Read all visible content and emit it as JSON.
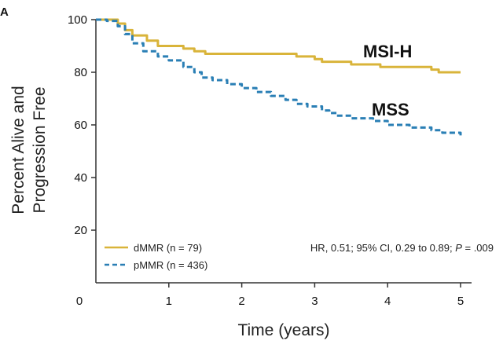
{
  "chart_data": {
    "type": "line",
    "step": true,
    "panel_label": "A",
    "xlabel": "Time (years)",
    "ylabel_lines": [
      "Percent Alive and",
      "Progression Free"
    ],
    "xlim": [
      0,
      5
    ],
    "ylim": [
      20,
      100
    ],
    "x_ticks": [
      0,
      1,
      2,
      3,
      4,
      5
    ],
    "y_ticks": [
      20,
      40,
      60,
      80,
      100
    ],
    "grid": false,
    "legend_position": "bottom-left",
    "annotations": {
      "msih": "MSI-H",
      "mss": "MSS",
      "stat_prefix": "HR, 0.51; 95% CI, 0.29 to 0.89; ",
      "stat_p_label": "P",
      "stat_p_value": " = .009"
    },
    "series": [
      {
        "name": "dMMR (n = 79)",
        "color": "#d9b43a",
        "dash": "solid",
        "points": [
          [
            0,
            100
          ],
          [
            0.25,
            100
          ],
          [
            0.3,
            98.5
          ],
          [
            0.4,
            96
          ],
          [
            0.5,
            94
          ],
          [
            0.7,
            92
          ],
          [
            0.85,
            90
          ],
          [
            1.2,
            89
          ],
          [
            1.35,
            88
          ],
          [
            1.5,
            87
          ],
          [
            2.6,
            87
          ],
          [
            2.75,
            86
          ],
          [
            3.0,
            85
          ],
          [
            3.1,
            84
          ],
          [
            3.5,
            83
          ],
          [
            3.9,
            82
          ],
          [
            4.6,
            81
          ],
          [
            4.7,
            80
          ],
          [
            5.0,
            80
          ]
        ]
      },
      {
        "name": "pMMR (n = 436)",
        "color": "#2a7fb5",
        "dash": "dashed",
        "points": [
          [
            0,
            100
          ],
          [
            0.15,
            99.5
          ],
          [
            0.3,
            97.5
          ],
          [
            0.4,
            94.5
          ],
          [
            0.5,
            91
          ],
          [
            0.65,
            88
          ],
          [
            0.85,
            86
          ],
          [
            1.0,
            84.5
          ],
          [
            1.2,
            82
          ],
          [
            1.35,
            80
          ],
          [
            1.45,
            78
          ],
          [
            1.6,
            77
          ],
          [
            1.8,
            75.5
          ],
          [
            2.0,
            74
          ],
          [
            2.2,
            72.5
          ],
          [
            2.4,
            71
          ],
          [
            2.6,
            69.5
          ],
          [
            2.75,
            68
          ],
          [
            2.9,
            67
          ],
          [
            3.1,
            65.5
          ],
          [
            3.2,
            64.5
          ],
          [
            3.3,
            63.5
          ],
          [
            3.5,
            62.5
          ],
          [
            3.8,
            61.5
          ],
          [
            4.0,
            60
          ],
          [
            4.3,
            59
          ],
          [
            4.6,
            58
          ],
          [
            4.75,
            57
          ],
          [
            5.0,
            56
          ]
        ]
      }
    ]
  }
}
